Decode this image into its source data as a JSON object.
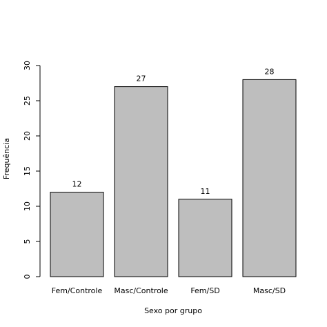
{
  "chart_data": {
    "type": "bar",
    "xlabel": "Sexo por grupo",
    "ylabel": "Frequência",
    "categories": [
      "Fem/Controle",
      "Masc/Controle",
      "Fem/SD",
      "Masc/SD"
    ],
    "values": [
      12,
      27,
      11,
      28
    ],
    "color": "#bebebe",
    "ylim": [
      0,
      30
    ],
    "yticks": [
      0,
      5,
      10,
      15,
      20,
      25,
      30
    ]
  }
}
